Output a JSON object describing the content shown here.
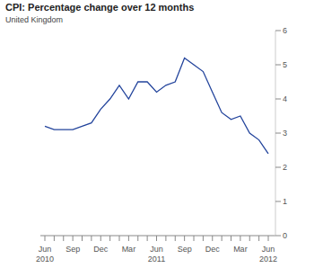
{
  "chart_data": {
    "type": "line",
    "title": "CPI: Percentage change over 12 months",
    "subtitle": "United Kingdom",
    "categories": [
      "Jun 2010",
      null,
      null,
      "Sep",
      null,
      null,
      "Dec",
      null,
      null,
      "Mar",
      null,
      null,
      "Jun 2011",
      null,
      null,
      "Sep",
      null,
      null,
      "Dec",
      null,
      null,
      "Mar",
      null,
      null,
      "Jun 2012"
    ],
    "values": [
      3.2,
      3.1,
      3.1,
      3.1,
      3.2,
      3.3,
      3.7,
      4.0,
      4.4,
      4.0,
      4.5,
      4.5,
      4.2,
      4.4,
      4.5,
      5.2,
      5.0,
      4.8,
      4.2,
      3.6,
      3.4,
      3.5,
      3.0,
      2.8,
      2.4
    ],
    "color": "#23449c",
    "ylim": [
      0,
      6
    ],
    "yticks": [
      0,
      1,
      2,
      3,
      4,
      5,
      6
    ],
    "grid": false
  }
}
